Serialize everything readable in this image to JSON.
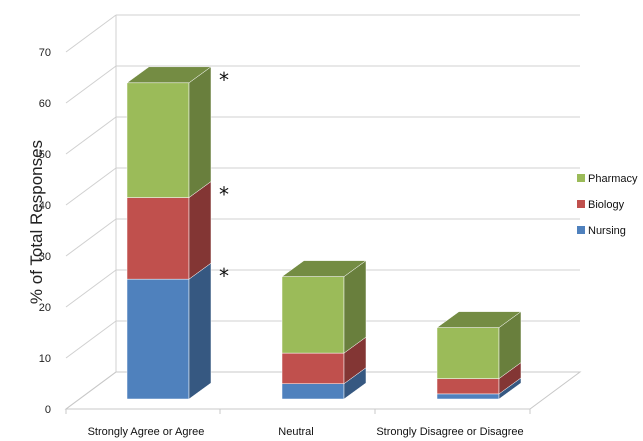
{
  "chart_data": {
    "type": "bar",
    "stacked": true,
    "three_d": true,
    "categories": [
      "Strongly Agree or Agree",
      "Neutral",
      "Strongly Disagree or Disagree"
    ],
    "series": [
      {
        "name": "Nursing",
        "values": [
          23.5,
          3,
          1
        ],
        "color": "#4f81bd"
      },
      {
        "name": "Biology",
        "values": [
          16,
          6,
          3
        ],
        "color": "#c0504d"
      },
      {
        "name": "Pharmacy",
        "values": [
          22.5,
          15,
          10
        ],
        "color": "#9bbb59"
      }
    ],
    "ylabel": "% of Total Responses",
    "xlabel": "",
    "ylim": [
      0,
      70
    ],
    "yticks": [
      0,
      10,
      20,
      30,
      40,
      50,
      60,
      70
    ],
    "grid": true,
    "legend": "right",
    "annotations": [
      {
        "text": "*",
        "category": "Strongly Agree or Agree",
        "series": "Pharmacy"
      },
      {
        "text": "*",
        "category": "Strongly Agree or Agree",
        "series": "Biology"
      },
      {
        "text": "*",
        "category": "Strongly Agree or Agree",
        "series": "Nursing"
      }
    ]
  }
}
